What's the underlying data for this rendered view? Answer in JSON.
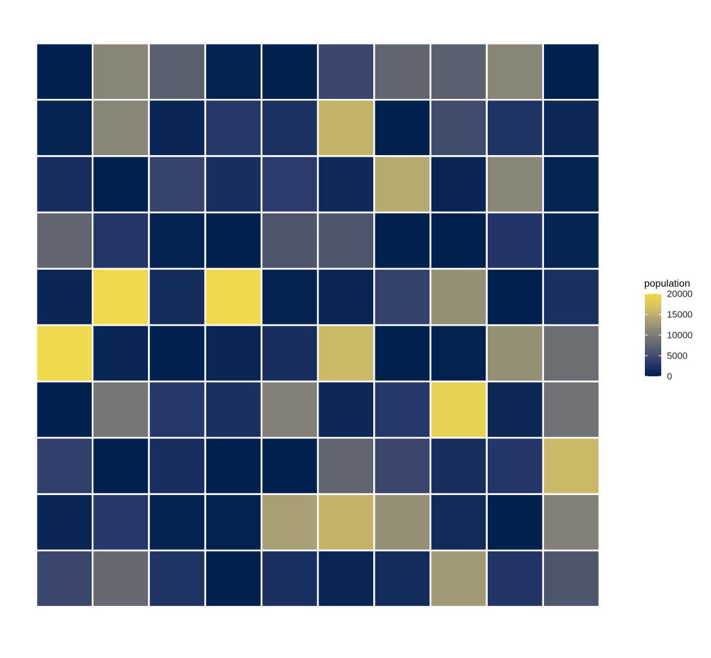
{
  "chart_data": {
    "type": "heatmap",
    "title": "",
    "xlabel": "",
    "ylabel": "",
    "grid": false,
    "rows": 10,
    "cols": 10,
    "values": [
      [
        0,
        11000,
        7000,
        300,
        0,
        4500,
        7500,
        7000,
        11000,
        0
      ],
      [
        500,
        11000,
        700,
        3000,
        2200,
        15500,
        0,
        5000,
        2500,
        1000
      ],
      [
        1800,
        0,
        4200,
        1800,
        3400,
        1200,
        14500,
        700,
        11000,
        500
      ],
      [
        7500,
        2800,
        300,
        0,
        6000,
        6000,
        0,
        0,
        2700,
        500
      ],
      [
        800,
        20000,
        1500,
        20000,
        300,
        700,
        4000,
        12000,
        0,
        2000
      ],
      [
        20000,
        800,
        0,
        800,
        1800,
        16000,
        0,
        300,
        12000,
        8500
      ],
      [
        0,
        9500,
        3000,
        2000,
        10500,
        1000,
        3000,
        19000,
        1000,
        9000
      ],
      [
        3800,
        0,
        1800,
        0,
        0,
        7500,
        4500,
        1800,
        2800,
        16000
      ],
      [
        800,
        3000,
        300,
        300,
        13500,
        15500,
        12000,
        1300,
        0,
        10500
      ],
      [
        4500,
        8000,
        2500,
        0,
        2000,
        700,
        1500,
        13000,
        2600,
        6000
      ]
    ],
    "colorscale": {
      "name": "cividis",
      "min": 0,
      "max": 20000,
      "stops": [
        "#00204d",
        "#2a3a6c",
        "#575d6d",
        "#7c7b78",
        "#a69d75",
        "#d3c164",
        "#f0d94c"
      ]
    },
    "legend": {
      "title": "population",
      "position": "right",
      "ticks": [
        0,
        5000,
        10000,
        15000,
        20000
      ],
      "tick_labels": [
        "0",
        "5000",
        "10000",
        "15000",
        "20000"
      ]
    }
  }
}
